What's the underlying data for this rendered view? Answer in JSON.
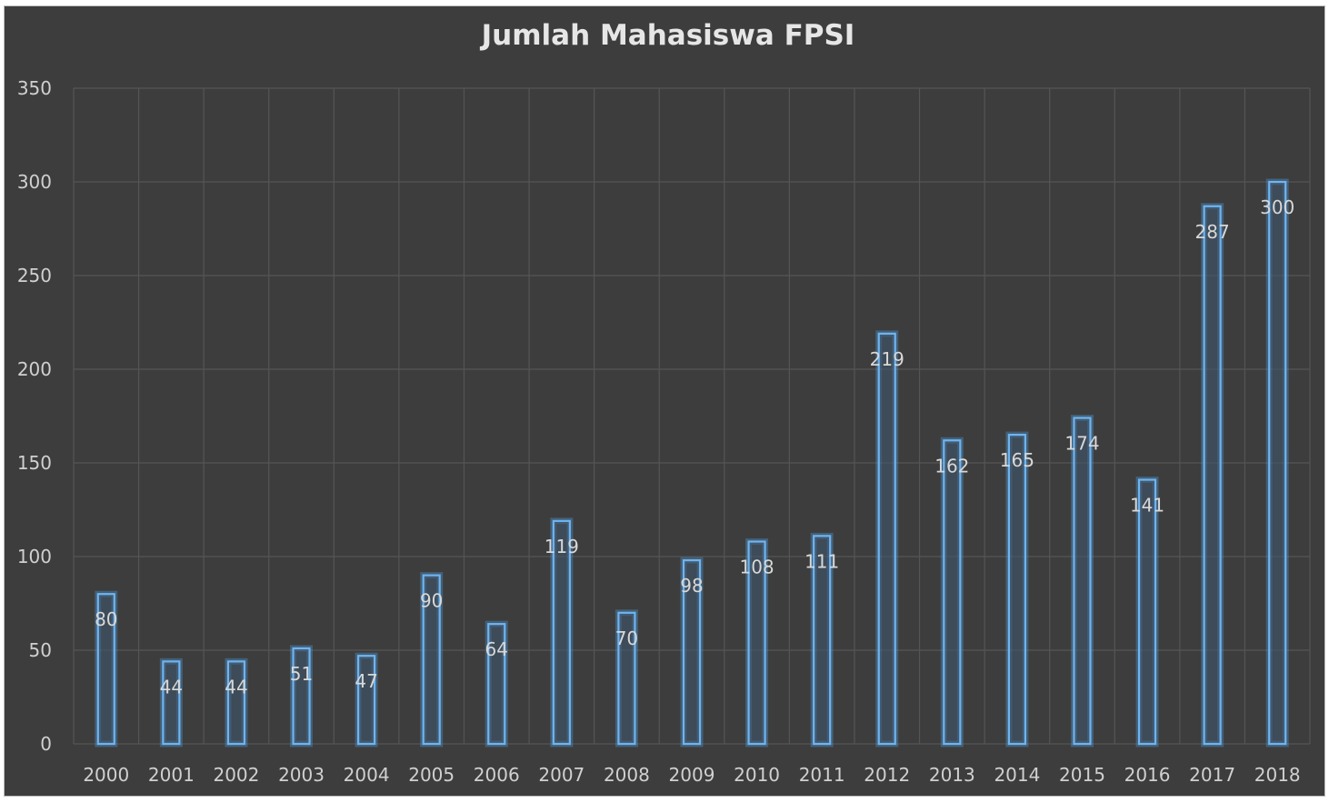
{
  "chart_data": {
    "type": "bar",
    "title": "Jumlah Mahasiswa FPSI",
    "categories": [
      "2000",
      "2001",
      "2002",
      "2003",
      "2004",
      "2005",
      "2006",
      "2007",
      "2008",
      "2009",
      "2010",
      "2011",
      "2012",
      "2013",
      "2014",
      "2015",
      "2016",
      "2017",
      "2018"
    ],
    "values": [
      80,
      44,
      44,
      51,
      47,
      90,
      64,
      119,
      70,
      98,
      108,
      111,
      219,
      162,
      165,
      174,
      141,
      287,
      300
    ],
    "ylim": [
      0,
      350
    ],
    "yticks": [
      "0",
      "50",
      "100",
      "150",
      "200",
      "250",
      "300",
      "350"
    ],
    "grid": true,
    "data_labels": true,
    "colors": {
      "background": "#3d3d3d",
      "bar_outline": "#6fb4ef",
      "gridline": "#555555"
    }
  }
}
